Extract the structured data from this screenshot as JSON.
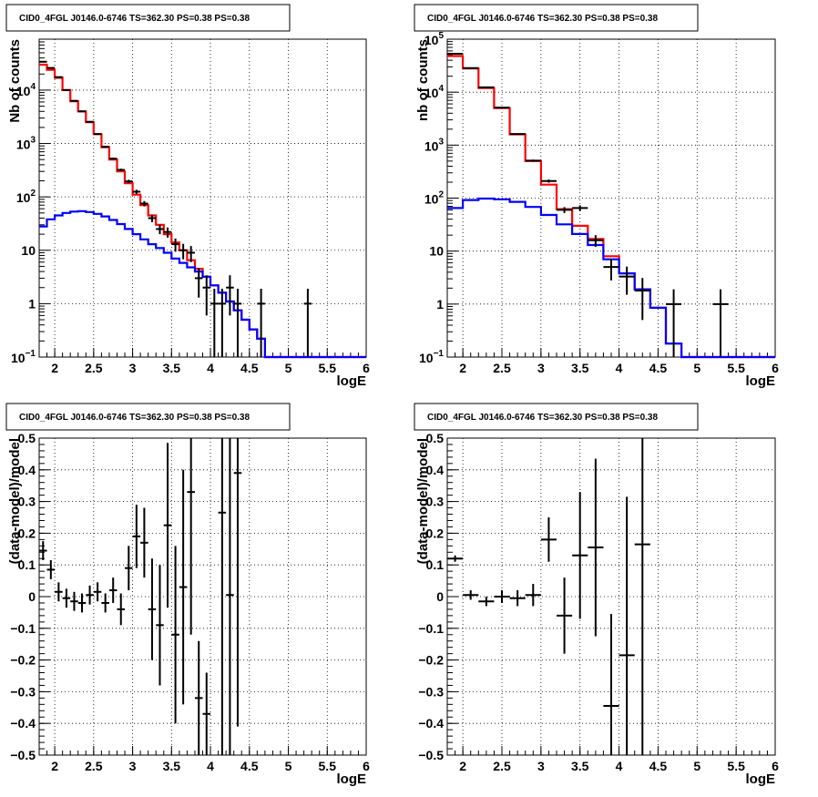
{
  "chart_data": [
    {
      "type": "line",
      "title": "CID0_4FGL J0146.0-6746 TS=362.30 PS=0.38 PS=0.38",
      "xlabel": "logE",
      "ylabel": "Nb of counts",
      "xlim": [
        1.8,
        6.0
      ],
      "ylim": [
        0.1,
        90000
      ],
      "yscale": "log",
      "grid": true,
      "x_ticks": [
        "2",
        "2.5",
        "3",
        "3.5",
        "4",
        "4.5",
        "5",
        "5.5",
        "6"
      ],
      "y_ticks": [
        {
          "value": 0.1,
          "base": "10",
          "exp": "−1"
        },
        {
          "value": 1,
          "label": "1"
        },
        {
          "value": 10,
          "label": "10"
        },
        {
          "value": 100,
          "base": "10",
          "exp": "2"
        },
        {
          "value": 1000,
          "base": "10",
          "exp": "3"
        },
        {
          "value": 10000,
          "base": "10",
          "exp": "4"
        }
      ],
      "bin_width": 0.1,
      "series": [
        {
          "color": "#ff0000",
          "kind": "step",
          "x": [
            1.85,
            1.95,
            2.05,
            2.15,
            2.25,
            2.35,
            2.45,
            2.55,
            2.65,
            2.75,
            2.85,
            2.95,
            3.05,
            3.15,
            3.25,
            3.35,
            3.45,
            3.55,
            3.65,
            3.75,
            3.85,
            3.95,
            4.05,
            4.15,
            4.25,
            4.35,
            4.45,
            4.55,
            4.65,
            4.75,
            4.85,
            4.95,
            5.05,
            5.15,
            5.25,
            5.35,
            5.45,
            5.55,
            5.65,
            5.75,
            5.85,
            5.95
          ],
          "y": [
            30000,
            24000,
            17000,
            10000,
            6200,
            4000,
            2500,
            1500,
            850,
            500,
            300,
            180,
            110,
            70,
            45,
            30,
            20,
            14,
            10,
            6.5,
            4.5,
            3.2,
            2.2,
            1.6,
            1.1,
            0.75,
            0.5,
            0.33,
            0.22,
            0.1,
            0.1,
            0.1,
            0.1,
            0.1,
            0.1,
            0.1,
            0.1,
            0.1,
            0.1,
            0.1,
            0.1,
            0.1
          ]
        },
        {
          "color": "#0000ff",
          "kind": "step",
          "x": [
            1.85,
            1.95,
            2.05,
            2.15,
            2.25,
            2.35,
            2.45,
            2.55,
            2.65,
            2.75,
            2.85,
            2.95,
            3.05,
            3.15,
            3.25,
            3.35,
            3.45,
            3.55,
            3.65,
            3.75,
            3.85,
            3.95,
            4.05,
            4.15,
            4.25,
            4.35,
            4.45,
            4.55,
            4.65,
            4.75,
            4.85,
            4.95,
            5.05,
            5.15,
            5.25,
            5.35,
            5.45,
            5.55,
            5.65,
            5.75,
            5.85,
            5.95
          ],
          "y": [
            28,
            38,
            45,
            50,
            53,
            54,
            52,
            48,
            43,
            37,
            31,
            25,
            20,
            16,
            13,
            11,
            9,
            7,
            5.8,
            4.8,
            4,
            3.2,
            2.2,
            1.6,
            1.1,
            0.75,
            0.5,
            0.33,
            0.22,
            0.1,
            0.1,
            0.1,
            0.1,
            0.1,
            0.1,
            0.1,
            0.1,
            0.1,
            0.1,
            0.1,
            0.1,
            0.1
          ]
        },
        {
          "color": "#000000",
          "kind": "points",
          "x": [
            1.85,
            1.95,
            2.05,
            2.15,
            2.25,
            2.35,
            2.45,
            2.55,
            2.65,
            2.75,
            2.85,
            2.95,
            3.05,
            3.15,
            3.25,
            3.35,
            3.45,
            3.55,
            3.65,
            3.75,
            3.85,
            3.95,
            4.05,
            4.15,
            4.25,
            4.35,
            4.65,
            5.25
          ],
          "y": [
            34000,
            26000,
            17500,
            10000,
            6300,
            4000,
            2550,
            1500,
            870,
            520,
            320,
            195,
            125,
            75,
            40,
            25,
            22,
            13,
            10,
            9,
            3,
            2,
            1,
            1,
            2,
            1,
            1,
            1
          ],
          "err_low": [
            184,
            161,
            132,
            100,
            79,
            63,
            50,
            39,
            29,
            23,
            18,
            14,
            11,
            8.7,
            6.3,
            5,
            4.7,
            3.6,
            3.2,
            3,
            1.7,
            1.4,
            0.9,
            0.9,
            1.4,
            0.9,
            0.9,
            0.9
          ],
          "err_high": [
            184,
            161,
            132,
            100,
            79,
            63,
            50,
            39,
            29,
            23,
            18,
            14,
            11,
            8.7,
            6.3,
            5,
            4.7,
            3.6,
            3.2,
            3,
            1.7,
            1.4,
            0.9,
            0.9,
            1.4,
            0.9,
            0.9,
            0.9
          ]
        }
      ]
    },
    {
      "type": "line",
      "title": "CID0_4FGL J0146.0-6746 TS=362.30 PS=0.38 PS=0.38",
      "xlabel": "logE",
      "ylabel": "nb of counts",
      "xlim": [
        1.8,
        6.0
      ],
      "ylim": [
        0.1,
        100000
      ],
      "yscale": "log",
      "grid": true,
      "x_ticks": [
        "2",
        "2.5",
        "3",
        "3.5",
        "4",
        "4.5",
        "5",
        "5.5",
        "6"
      ],
      "y_ticks": [
        {
          "value": 0.1,
          "base": "10",
          "exp": "−1"
        },
        {
          "value": 1,
          "label": "1"
        },
        {
          "value": 10,
          "label": "10"
        },
        {
          "value": 100,
          "base": "10",
          "exp": "2"
        },
        {
          "value": 1000,
          "base": "10",
          "exp": "3"
        },
        {
          "value": 10000,
          "base": "10",
          "exp": "4"
        },
        {
          "value": 100000,
          "base": "10",
          "exp": "5"
        }
      ],
      "bin_width": 0.2,
      "series": [
        {
          "color": "#ff0000",
          "kind": "step",
          "x": [
            1.9,
            2.1,
            2.3,
            2.5,
            2.7,
            2.9,
            3.1,
            3.3,
            3.5,
            3.7,
            3.9,
            4.1,
            4.3,
            4.5,
            4.7,
            4.9,
            5.1,
            5.3,
            5.5,
            5.7,
            5.9
          ],
          "y": [
            48000,
            28000,
            12000,
            5000,
            1600,
            500,
            180,
            62,
            30,
            17,
            8,
            3.8,
            1.9,
            0.85,
            0.18,
            0.1,
            0.1,
            0.1,
            0.1,
            0.1,
            0.1
          ]
        },
        {
          "color": "#0000ff",
          "kind": "step",
          "x": [
            1.9,
            2.1,
            2.3,
            2.5,
            2.7,
            2.9,
            3.1,
            3.3,
            3.5,
            3.7,
            3.9,
            4.1,
            4.3,
            4.5,
            4.7,
            4.9,
            5.1,
            5.3,
            5.5,
            5.7,
            5.9
          ],
          "y": [
            65,
            92,
            98,
            95,
            85,
            68,
            48,
            32,
            21,
            13,
            7,
            3.8,
            1.9,
            0.85,
            0.18,
            0.1,
            0.1,
            0.1,
            0.1,
            0.1,
            0.1
          ]
        },
        {
          "color": "#000000",
          "kind": "points",
          "x": [
            1.9,
            2.1,
            2.3,
            2.5,
            2.7,
            2.9,
            3.1,
            3.3,
            3.5,
            3.7,
            3.9,
            4.1,
            4.3,
            4.7,
            5.3
          ],
          "y": [
            53000,
            28500,
            12300,
            5100,
            1620,
            510,
            210,
            60,
            65,
            16,
            5,
            3.3,
            1.8,
            1,
            1
          ],
          "err_low": [
            230,
            169,
            111,
            71,
            40,
            23,
            14.5,
            7.7,
            8,
            4,
            2.2,
            1.8,
            1.3,
            0.9,
            0.9
          ],
          "err_high": [
            230,
            169,
            111,
            71,
            40,
            23,
            14.5,
            7.7,
            8,
            4,
            2.2,
            1.8,
            1.3,
            0.9,
            0.9
          ]
        }
      ]
    },
    {
      "type": "scatter",
      "title": "CID0_4FGL J0146.0-6746 TS=362.30 PS=0.38 PS=0.38",
      "xlabel": "logE",
      "ylabel": "(data-model)/model",
      "xlim": [
        1.8,
        6.0
      ],
      "ylim": [
        -0.5,
        0.5
      ],
      "grid": true,
      "x_ticks": [
        "2",
        "2.5",
        "3",
        "3.5",
        "4",
        "4.5",
        "5",
        "5.5",
        "6"
      ],
      "y_ticks": [
        {
          "value": -0.5,
          "label": "−0.5"
        },
        {
          "value": -0.4,
          "label": "−0.4"
        },
        {
          "value": -0.3,
          "label": "−0.3"
        },
        {
          "value": -0.2,
          "label": "−0.2"
        },
        {
          "value": -0.1,
          "label": "−0.1"
        },
        {
          "value": 0,
          "label": "0"
        },
        {
          "value": 0.1,
          "label": "0.1"
        },
        {
          "value": 0.2,
          "label": "0.2"
        },
        {
          "value": 0.3,
          "label": "0.3"
        },
        {
          "value": 0.4,
          "label": "0.4"
        },
        {
          "value": 0.5,
          "label": "0.5"
        }
      ],
      "bin_width": 0.1,
      "series": [
        {
          "color": "#000000",
          "kind": "points",
          "x": [
            1.85,
            1.95,
            2.05,
            2.15,
            2.25,
            2.35,
            2.45,
            2.55,
            2.65,
            2.75,
            2.85,
            2.95,
            3.05,
            3.15,
            3.25,
            3.35,
            3.45,
            3.55,
            3.65,
            3.75,
            3.85,
            3.95,
            4.15,
            4.25,
            4.35
          ],
          "y": [
            0.145,
            0.085,
            0.015,
            -0.005,
            -0.015,
            -0.02,
            0.005,
            0.015,
            -0.02,
            0.02,
            -0.04,
            0.09,
            0.19,
            0.17,
            -0.04,
            -0.09,
            0.225,
            -0.12,
            0.03,
            0.33,
            -0.32,
            -0.37,
            0.265,
            0.005,
            0.39
          ],
          "err_low": [
            0.03,
            0.03,
            0.03,
            0.03,
            0.03,
            0.03,
            0.03,
            0.03,
            0.03,
            0.04,
            0.05,
            0.07,
            0.1,
            0.11,
            0.16,
            0.19,
            0.26,
            0.28,
            0.37,
            0.45,
            0.18,
            0.13,
            0.8,
            0.8,
            0.8
          ],
          "err_high": [
            0.03,
            0.03,
            0.03,
            0.03,
            0.03,
            0.03,
            0.03,
            0.03,
            0.03,
            0.04,
            0.05,
            0.07,
            0.1,
            0.11,
            0.16,
            0.19,
            0.26,
            0.28,
            0.37,
            0.45,
            0.18,
            0.13,
            0.8,
            0.8,
            0.8
          ]
        }
      ]
    },
    {
      "type": "scatter",
      "title": "CID0_4FGL J0146.0-6746 TS=362.30 PS=0.38 PS=0.38",
      "xlabel": "logE",
      "ylabel": "(data-model)/model",
      "xlim": [
        1.8,
        6.0
      ],
      "ylim": [
        -0.5,
        0.5
      ],
      "grid": true,
      "x_ticks": [
        "2",
        "2.5",
        "3",
        "3.5",
        "4",
        "4.5",
        "5",
        "5.5",
        "6"
      ],
      "y_ticks": [
        {
          "value": -0.5,
          "label": "−0.5"
        },
        {
          "value": -0.4,
          "label": "−0.4"
        },
        {
          "value": -0.3,
          "label": "−0.3"
        },
        {
          "value": -0.2,
          "label": "−0.2"
        },
        {
          "value": -0.1,
          "label": "−0.1"
        },
        {
          "value": 0,
          "label": "0"
        },
        {
          "value": 0.1,
          "label": "0.1"
        },
        {
          "value": 0.2,
          "label": "0.2"
        },
        {
          "value": 0.3,
          "label": "0.3"
        },
        {
          "value": 0.4,
          "label": "0.4"
        },
        {
          "value": 0.5,
          "label": "0.5"
        }
      ],
      "bin_width": 0.2,
      "series": [
        {
          "color": "#000000",
          "kind": "points",
          "x": [
            1.9,
            2.1,
            2.3,
            2.5,
            2.7,
            2.9,
            3.1,
            3.3,
            3.5,
            3.7,
            3.9,
            4.1,
            4.3
          ],
          "y": [
            0.12,
            0.005,
            -0.015,
            0,
            -0.005,
            0.005,
            0.18,
            -0.06,
            0.13,
            0.155,
            -0.345,
            -0.185,
            0.165
          ],
          "err_low": [
            0.01,
            0.015,
            0.015,
            0.02,
            0.025,
            0.035,
            0.07,
            0.12,
            0.2,
            0.28,
            0.29,
            0.5,
            0.7
          ],
          "err_high": [
            0.01,
            0.015,
            0.015,
            0.02,
            0.025,
            0.035,
            0.07,
            0.12,
            0.2,
            0.28,
            0.29,
            0.5,
            0.7
          ]
        }
      ]
    }
  ]
}
